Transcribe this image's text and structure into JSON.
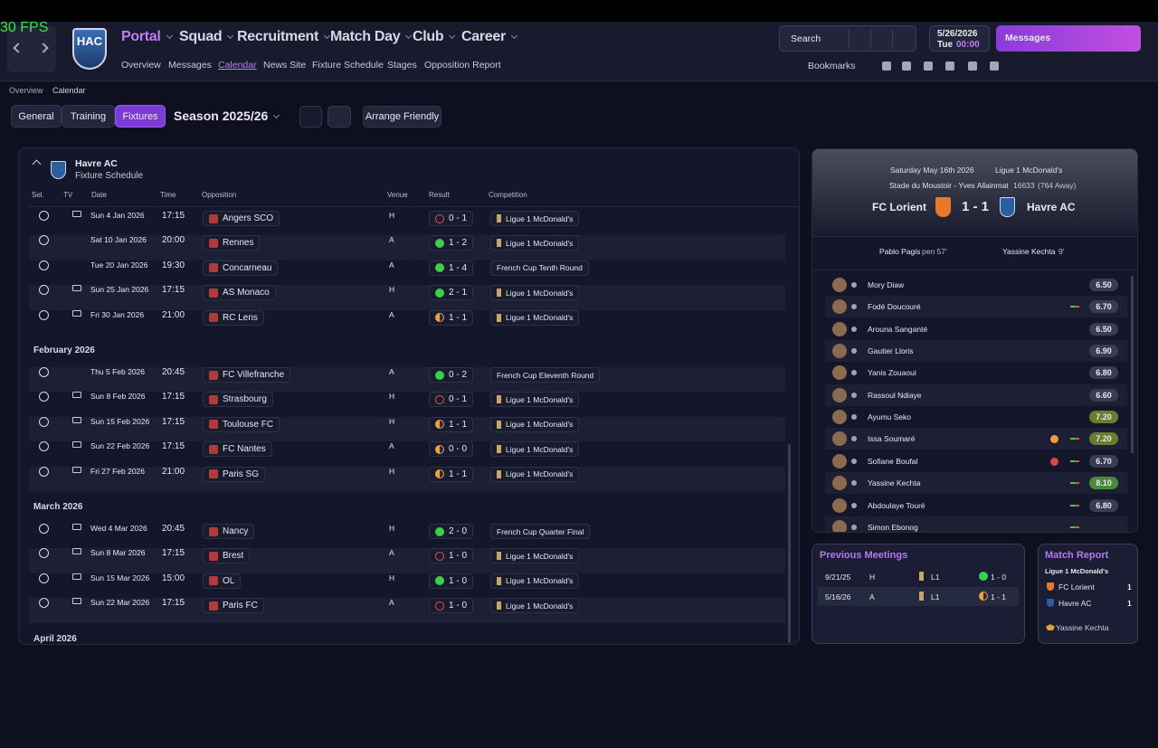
{
  "fps": "30 FPS",
  "header": {
    "logo": "HAC",
    "nav": [
      "Portal",
      "Squad",
      "Recruitment",
      "Match Day",
      "Club",
      "Career"
    ],
    "active_nav": 0,
    "subnav": [
      "Overview",
      "Messages",
      "Calendar",
      "News Site",
      "Fixture Schedule",
      "Stages",
      "Opposition Report"
    ],
    "active_subnav": 2,
    "search": "Search",
    "date": "5/26/2026",
    "weekday": "Tue",
    "time": "00:00",
    "messages": "Messages",
    "bookmarks": "Bookmarks"
  },
  "breadcrumb": [
    "Overview",
    "Calendar"
  ],
  "toolbar": {
    "tabs": [
      "General",
      "Training",
      "Fixtures"
    ],
    "active_tab": 2,
    "season": "Season 2025/26",
    "arrange": "Arrange Friendly"
  },
  "fixtures": {
    "team": "Havre AC",
    "subtitle": "Fixture Schedule",
    "columns": [
      "Sel.",
      "TV",
      "Date",
      "Time",
      "Opposition",
      "Venue",
      "Result",
      "Competition"
    ],
    "sections": [
      {
        "rows": [
          {
            "date": "Sun 4 Jan 2026",
            "time": "17:15",
            "opposition": "Angers SCO",
            "venue": "H",
            "result": "0 - 1",
            "competition": "Ligue 1 McDonald's",
            "tv": true,
            "outcome": "loss"
          },
          {
            "date": "Sat 10 Jan 2026",
            "time": "20:00",
            "opposition": "Rennes",
            "venue": "A",
            "result": "1 - 2",
            "competition": "Ligue 1 McDonald's",
            "tv": false,
            "outcome": "win"
          },
          {
            "date": "Tue 20 Jan 2026",
            "time": "19:30",
            "opposition": "Concarneau",
            "venue": "A",
            "result": "1 - 4",
            "competition": "French Cup Tenth Round",
            "tv": false,
            "outcome": "win"
          },
          {
            "date": "Sun 25 Jan 2026",
            "time": "17:15",
            "opposition": "AS Monaco",
            "venue": "H",
            "result": "2 - 1",
            "competition": "Ligue 1 McDonald's",
            "tv": true,
            "outcome": "win"
          },
          {
            "date": "Fri 30 Jan 2026",
            "time": "21:00",
            "opposition": "RC Lens",
            "venue": "A",
            "result": "1 - 1",
            "competition": "Ligue 1 McDonald's",
            "tv": true,
            "outcome": "draw"
          }
        ]
      },
      {
        "month": "February 2026",
        "rows": [
          {
            "date": "Thu 5 Feb 2026",
            "time": "20:45",
            "opposition": "FC Villefranche",
            "venue": "A",
            "result": "0 - 2",
            "competition": "French Cup Eleventh Round",
            "tv": false,
            "outcome": "win"
          },
          {
            "date": "Sun 8 Feb 2026",
            "time": "17:15",
            "opposition": "Strasbourg",
            "venue": "H",
            "result": "0 - 1",
            "competition": "Ligue 1 McDonald's",
            "tv": true,
            "outcome": "loss"
          },
          {
            "date": "Sun 15 Feb 2026",
            "time": "17:15",
            "opposition": "Toulouse FC",
            "venue": "H",
            "result": "1 - 1",
            "competition": "Ligue 1 McDonald's",
            "tv": true,
            "outcome": "draw"
          },
          {
            "date": "Sun 22 Feb 2026",
            "time": "17:15",
            "opposition": "FC Nantes",
            "venue": "A",
            "result": "0 - 0",
            "competition": "Ligue 1 McDonald's",
            "tv": true,
            "outcome": "draw"
          },
          {
            "date": "Fri 27 Feb 2026",
            "time": "21:00",
            "opposition": "Paris SG",
            "venue": "H",
            "result": "1 - 1",
            "competition": "Ligue 1 McDonald's",
            "tv": true,
            "outcome": "draw"
          }
        ]
      },
      {
        "month": "March 2026",
        "rows": [
          {
            "date": "Wed 4 Mar 2026",
            "time": "20:45",
            "opposition": "Nancy",
            "venue": "H",
            "result": "2 - 0",
            "competition": "French Cup Quarter Final",
            "tv": true,
            "outcome": "win"
          },
          {
            "date": "Sun 8 Mar 2026",
            "time": "17:15",
            "opposition": "Brest",
            "venue": "A",
            "result": "1 - 0",
            "competition": "Ligue 1 McDonald's",
            "tv": true,
            "outcome": "loss"
          },
          {
            "date": "Sun 15 Mar 2026",
            "time": "15:00",
            "opposition": "OL",
            "venue": "H",
            "result": "1 - 0",
            "competition": "Ligue 1 McDonald's",
            "tv": true,
            "outcome": "win"
          },
          {
            "date": "Sun 22 Mar 2026",
            "time": "17:15",
            "opposition": "Paris FC",
            "venue": "A",
            "result": "1 - 0",
            "competition": "Ligue 1 McDonald's",
            "tv": true,
            "outcome": "loss"
          }
        ]
      },
      {
        "month": "April 2026",
        "rows": []
      }
    ]
  },
  "match": {
    "date": "Saturday May 16th 2026",
    "competition": "Ligue 1 McDonald's",
    "stadium": "Stade du Moustoir - Yves Allainmat",
    "attendance": "16633",
    "away_fans": "(764 Away)",
    "home": "FC Lorient",
    "score": "1 - 1",
    "away": "Havre AC",
    "home_scorer": "Pablo Pagis",
    "home_scorer_note": "pen 57'",
    "away_scorer": "Yassine Kechta",
    "away_scorer_note": "9'",
    "players": [
      {
        "name": "Mory Diaw",
        "rating": "6.50",
        "sub": false,
        "event": null
      },
      {
        "name": "Fodé Doucouré",
        "rating": "6.70",
        "sub": true,
        "event": null
      },
      {
        "name": "Arouna Sanganté",
        "rating": "6.50",
        "sub": false,
        "event": null
      },
      {
        "name": "Gautier Lloris",
        "rating": "6.90",
        "sub": false,
        "event": null
      },
      {
        "name": "Yanis Zouaoui",
        "rating": "6.80",
        "sub": false,
        "event": null
      },
      {
        "name": "Rassoul Ndiaye",
        "rating": "6.60",
        "sub": false,
        "event": null
      },
      {
        "name": "Ayumu Seko",
        "rating": "7.20",
        "sub": false,
        "event": null
      },
      {
        "name": "Issa Soumaré",
        "rating": "7.20",
        "sub": true,
        "event": "orange"
      },
      {
        "name": "Sofiane Boufal",
        "rating": "6.70",
        "sub": true,
        "event": "red"
      },
      {
        "name": "Yassine Kechta",
        "rating": "8.10",
        "sub": true,
        "event": null
      },
      {
        "name": "Abdoulaye Touré",
        "rating": "6.80",
        "sub": true,
        "event": null
      },
      {
        "name": "Simon Ebonog",
        "sub": true,
        "event": null
      }
    ]
  },
  "previous_meetings": {
    "title": "Previous Meetings",
    "rows": [
      {
        "date": "9/21/25",
        "venue": "H",
        "competition": "L1",
        "result": "1 - 0",
        "outcome": "win"
      },
      {
        "date": "5/16/26",
        "venue": "A",
        "competition": "L1",
        "result": "1 - 1",
        "outcome": "draw"
      }
    ]
  },
  "match_report": {
    "title": "Match Report",
    "competition": "Ligue 1 McDonald's",
    "rows": [
      {
        "team": "FC Lorient",
        "goals": 1
      },
      {
        "team": "Havre AC",
        "goals": 1
      }
    ],
    "motm": "Yassine Kechta"
  }
}
